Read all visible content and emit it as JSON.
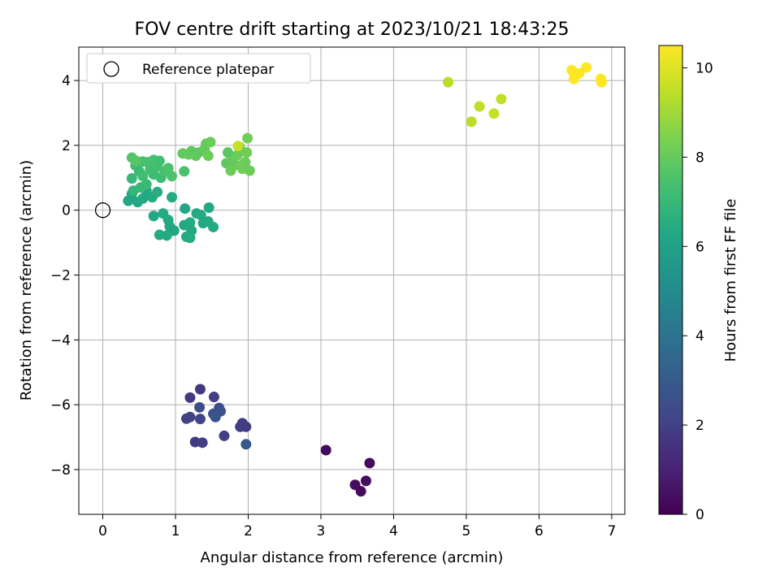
{
  "chart_data": {
    "type": "scatter",
    "title": "FOV centre drift starting at 2023/10/21 18:43:25",
    "xlabel": "Angular distance from reference (arcmin)",
    "ylabel": "Rotation from reference (arcmin)",
    "xlim": [
      -0.33,
      7.18
    ],
    "ylim": [
      -9.38,
      5.03
    ],
    "xticks": [
      0,
      1,
      2,
      3,
      4,
      5,
      6,
      7
    ],
    "yticks": [
      -8,
      -6,
      -4,
      -2,
      0,
      2,
      4
    ],
    "grid": true,
    "legend": {
      "placement": "upper-left",
      "entries": [
        "Reference platepar"
      ]
    },
    "reference_point": {
      "x": 0,
      "y": 0
    },
    "colorbar": {
      "label": "Hours from first FF file",
      "range": [
        0,
        10.5
      ],
      "ticks": [
        0,
        2,
        4,
        6,
        8,
        10
      ],
      "colormap": "viridis"
    },
    "points": [
      [
        3.07,
        -7.4,
        0.2
      ],
      [
        3.67,
        -7.8,
        0.3
      ],
      [
        3.62,
        -8.35,
        0.4
      ],
      [
        3.47,
        -8.47,
        0.4
      ],
      [
        3.55,
        -8.67,
        0.3
      ],
      [
        1.34,
        -5.52,
        1.7
      ],
      [
        1.2,
        -5.78,
        1.8
      ],
      [
        1.53,
        -5.76,
        1.9
      ],
      [
        1.33,
        -6.08,
        2.5
      ],
      [
        1.6,
        -6.1,
        2.5
      ],
      [
        1.62,
        -6.2,
        2.6
      ],
      [
        1.52,
        -6.28,
        2.6
      ],
      [
        1.55,
        -6.38,
        2.7
      ],
      [
        1.2,
        -6.38,
        2.0
      ],
      [
        1.15,
        -6.43,
        2.0
      ],
      [
        1.34,
        -6.44,
        2.1
      ],
      [
        1.92,
        -6.57,
        1.8
      ],
      [
        1.97,
        -6.68,
        1.8
      ],
      [
        1.89,
        -6.68,
        1.9
      ],
      [
        1.67,
        -6.96,
        1.9
      ],
      [
        1.27,
        -7.15,
        1.8
      ],
      [
        1.37,
        -7.17,
        1.9
      ],
      [
        1.97,
        -7.22,
        2.9
      ],
      [
        0.35,
        0.29,
        6.2
      ],
      [
        0.4,
        0.5,
        6.3
      ],
      [
        0.48,
        0.25,
        6.3
      ],
      [
        0.55,
        0.36,
        6.4
      ],
      [
        0.6,
        0.6,
        6.3
      ],
      [
        0.68,
        0.4,
        6.4
      ],
      [
        0.75,
        0.56,
        6.5
      ],
      [
        0.7,
        -0.18,
        6.3
      ],
      [
        0.83,
        -0.1,
        6.4
      ],
      [
        0.9,
        -0.3,
        6.4
      ],
      [
        0.95,
        0.4,
        6.4
      ],
      [
        0.92,
        -0.5,
        6.3
      ],
      [
        0.98,
        -0.63,
        6.2
      ],
      [
        0.88,
        -0.78,
        6.4
      ],
      [
        0.78,
        -0.76,
        6.4
      ],
      [
        1.12,
        -0.46,
        6.3
      ],
      [
        1.2,
        -0.38,
        6.4
      ],
      [
        1.22,
        -0.63,
        6.3
      ],
      [
        1.15,
        -0.82,
        6.4
      ],
      [
        1.2,
        -0.85,
        6.4
      ],
      [
        1.13,
        0.05,
        6.2
      ],
      [
        1.29,
        -0.1,
        6.3
      ],
      [
        1.35,
        -0.15,
        6.4
      ],
      [
        1.38,
        -0.4,
        6.3
      ],
      [
        1.45,
        -0.35,
        6.4
      ],
      [
        1.46,
        0.08,
        6.3
      ],
      [
        1.52,
        -0.52,
        6.4
      ],
      [
        0.4,
        0.98,
        7.0
      ],
      [
        0.45,
        1.38,
        7.2
      ],
      [
        0.5,
        1.2,
        7.1
      ],
      [
        0.55,
        1.05,
        7.3
      ],
      [
        0.6,
        0.8,
        7.1
      ],
      [
        0.65,
        1.25,
        7.3
      ],
      [
        0.7,
        1.1,
        7.2
      ],
      [
        0.75,
        1.35,
        7.3
      ],
      [
        0.8,
        1.0,
        7.2
      ],
      [
        0.85,
        1.2,
        7.4
      ],
      [
        0.9,
        1.3,
        7.5
      ],
      [
        0.95,
        1.05,
        7.5
      ],
      [
        0.55,
        1.5,
        7.3
      ],
      [
        0.62,
        1.48,
        7.4
      ],
      [
        0.7,
        1.55,
        7.4
      ],
      [
        0.78,
        1.52,
        7.3
      ],
      [
        0.52,
        0.7,
        7.0
      ],
      [
        0.42,
        0.6,
        6.9
      ],
      [
        1.12,
        1.2,
        7.4
      ],
      [
        0.4,
        1.62,
        7.6
      ],
      [
        0.46,
        1.52,
        7.7
      ],
      [
        1.1,
        1.75,
        7.9
      ],
      [
        1.18,
        1.72,
        8.0
      ],
      [
        1.22,
        1.82,
        7.9
      ],
      [
        1.28,
        1.68,
        8.0
      ],
      [
        1.32,
        1.78,
        7.9
      ],
      [
        1.4,
        1.88,
        8.0
      ],
      [
        1.42,
        2.05,
        8.0
      ],
      [
        1.48,
        2.1,
        8.1
      ],
      [
        1.45,
        1.68,
        8.1
      ],
      [
        1.7,
        1.45,
        7.9
      ],
      [
        1.78,
        1.55,
        8.0
      ],
      [
        1.82,
        1.4,
        8.0
      ],
      [
        1.76,
        1.22,
        8.1
      ],
      [
        1.85,
        1.7,
        8.1
      ],
      [
        1.9,
        1.38,
        8.2
      ],
      [
        1.92,
        1.28,
        8.2
      ],
      [
        1.96,
        1.48,
        8.1
      ],
      [
        1.98,
        1.78,
        8.2
      ],
      [
        1.99,
        2.22,
        8.2
      ],
      [
        2.02,
        1.22,
        8.1
      ],
      [
        1.88,
        1.95,
        8.0
      ],
      [
        1.72,
        1.78,
        7.8
      ],
      [
        1.86,
        1.98,
        9.6
      ],
      [
        4.75,
        3.95,
        9.4
      ],
      [
        5.07,
        2.73,
        9.4
      ],
      [
        5.18,
        3.2,
        9.5
      ],
      [
        5.38,
        2.98,
        9.6
      ],
      [
        5.48,
        3.43,
        9.5
      ],
      [
        6.45,
        4.32,
        10.5
      ],
      [
        6.48,
        4.05,
        10.5
      ],
      [
        6.55,
        4.22,
        10.5
      ],
      [
        6.65,
        4.4,
        10.5
      ],
      [
        6.85,
        4.05,
        10.5
      ],
      [
        6.86,
        3.95,
        10.5
      ]
    ]
  }
}
